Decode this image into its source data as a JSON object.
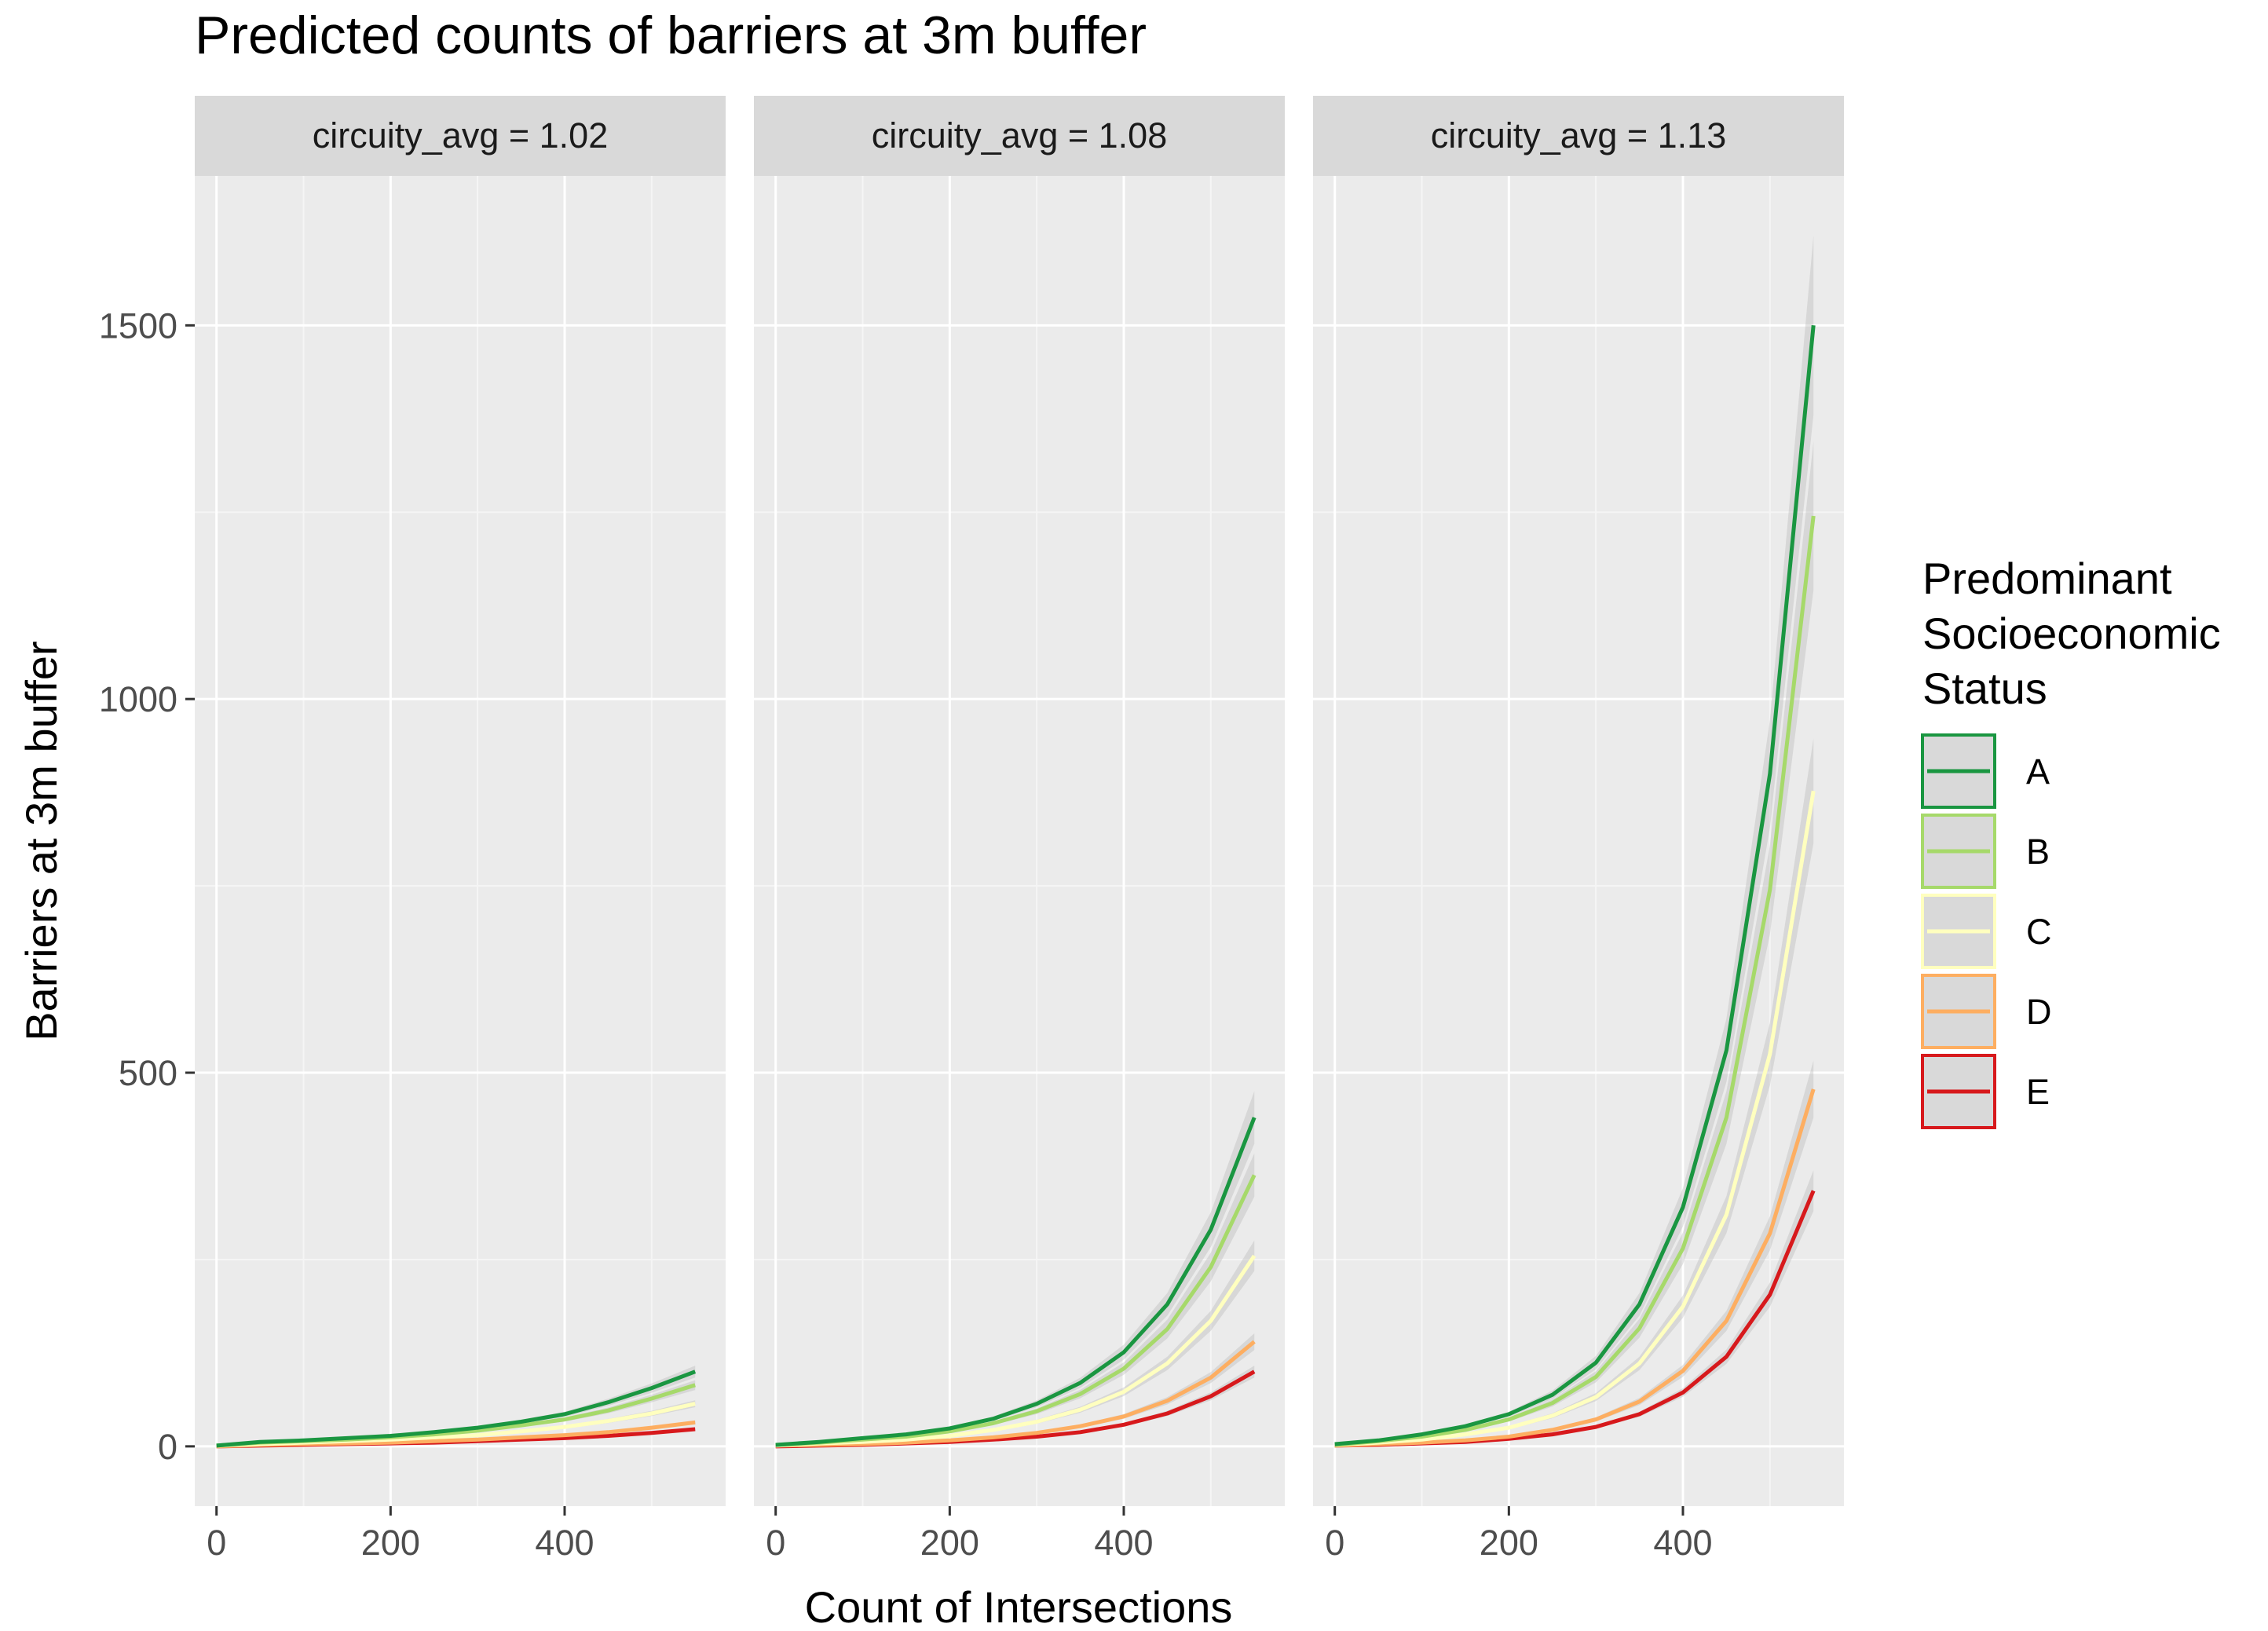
{
  "chart_data": {
    "type": "line",
    "title": "Predicted counts of barriers at 3m buffer",
    "xlabel": "Count of Intersections",
    "ylabel": "Barriers at 3m buffer",
    "xlim": [
      -25,
      585
    ],
    "ylim": [
      -80,
      1700
    ],
    "x_ticks": [
      0,
      200,
      400
    ],
    "y_ticks": [
      0,
      500,
      1000,
      1500
    ],
    "x_tick_labels": [
      "0",
      "200",
      "400"
    ],
    "y_tick_labels": [
      "0",
      "500",
      "1000",
      "1500"
    ],
    "legend_title": [
      "Predominant",
      "Socioeconomic",
      "Status"
    ],
    "legend": [
      {
        "name": "A",
        "color": "#1a9641"
      },
      {
        "name": "B",
        "color": "#a6d96a"
      },
      {
        "name": "C",
        "color": "#ffffbf"
      },
      {
        "name": "D",
        "color": "#fdae61"
      },
      {
        "name": "E",
        "color": "#d7191c"
      }
    ],
    "x": [
      0,
      50,
      100,
      150,
      200,
      250,
      300,
      350,
      400,
      450,
      500,
      550
    ],
    "panels": [
      {
        "label": "circuity_avg = 1.02",
        "series": [
          {
            "name": "A",
            "values": [
              1,
              6,
              8,
              11,
              14,
              19,
              25,
              33,
              43,
              59,
              78,
              100
            ]
          },
          {
            "name": "B",
            "values": [
              1,
              5,
              7,
              9,
              12,
              16,
              21,
              28,
              36,
              48,
              64,
              82
            ]
          },
          {
            "name": "C",
            "values": [
              1,
              3,
              5,
              7,
              9,
              12,
              15,
              20,
              26,
              34,
              44,
              57
            ]
          },
          {
            "name": "D",
            "values": [
              0,
              2,
              3,
              4,
              5,
              7,
              9,
              12,
              15,
              19,
              25,
              32
            ]
          },
          {
            "name": "E",
            "values": [
              0,
              1,
              2,
              3,
              4,
              5,
              7,
              9,
              11,
              14,
              18,
              23
            ]
          }
        ]
      },
      {
        "label": "circuity_avg = 1.08",
        "series": [
          {
            "name": "A",
            "values": [
              2,
              6,
              11,
              16,
              24,
              37,
              57,
              85,
              126,
              190,
              290,
              440
            ]
          },
          {
            "name": "B",
            "values": [
              2,
              5,
              9,
              13,
              20,
              31,
              47,
              70,
              104,
              157,
              240,
              363
            ]
          },
          {
            "name": "C",
            "values": [
              1,
              4,
              6,
              9,
              14,
              22,
              33,
              49,
              73,
              111,
              168,
              255
            ]
          },
          {
            "name": "D",
            "values": [
              1,
              2,
              3,
              5,
              8,
              12,
              18,
              27,
              40,
              61,
              92,
              140
            ]
          },
          {
            "name": "E",
            "values": [
              0,
              1,
              2,
              4,
              6,
              9,
              13,
              19,
              29,
              44,
              67,
              100
            ]
          }
        ]
      },
      {
        "label": "circuity_avg = 1.13",
        "series": [
          {
            "name": "A",
            "values": [
              3,
              8,
              16,
              27,
              43,
              69,
              112,
              190,
              320,
              530,
              900,
              1500
            ]
          },
          {
            "name": "B",
            "values": [
              2,
              7,
              13,
              22,
              36,
              58,
              93,
              158,
              265,
              440,
              745,
              1245
            ]
          },
          {
            "name": "C",
            "values": [
              2,
              5,
              9,
              16,
              25,
              41,
              66,
              111,
              187,
              310,
              525,
              877
            ]
          },
          {
            "name": "D",
            "values": [
              1,
              3,
              5,
              8,
              13,
              22,
              36,
              60,
              101,
              168,
              285,
              478
            ]
          },
          {
            "name": "E",
            "values": [
              1,
              2,
              4,
              6,
              10,
              16,
              26,
              43,
              72,
              120,
              203,
              342
            ]
          }
        ]
      }
    ]
  }
}
